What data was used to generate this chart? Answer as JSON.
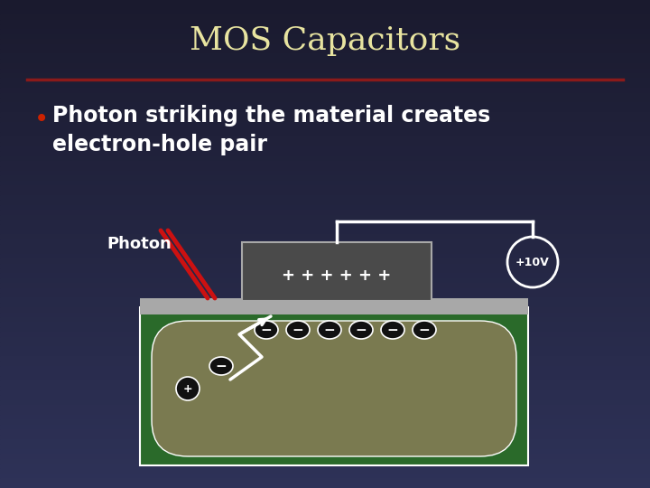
{
  "title": "MOS Capacitors",
  "title_color": "#e8e4a0",
  "title_fontsize": 26,
  "bg_color_tl": "#1a1a2e",
  "bg_color_br": "#2e3050",
  "separator_color": "#8b1a1a",
  "bullet_text_line1": "Photon striking the material creates",
  "bullet_text_line2": "electron-hole pair",
  "bullet_color": "#cc2200",
  "text_color": "#ffffff",
  "text_fontsize": 17,
  "photon_label": "Photon",
  "voltage_label": "+10V",
  "plus_charges": "+ + + + + +",
  "semiconductor_color": "#7a7a50",
  "semiconductor_border": "#ffffff",
  "oxide_color": "#a8a8a8",
  "gate_color": "#4a4a4a",
  "substrate_color": "#2a6a2a",
  "substrate_border": "#ffffff",
  "electron_color": "#111111",
  "photon_color": "#cc1111",
  "wire_color": "#ffffff",
  "volt_circle_color": "#ffffff"
}
